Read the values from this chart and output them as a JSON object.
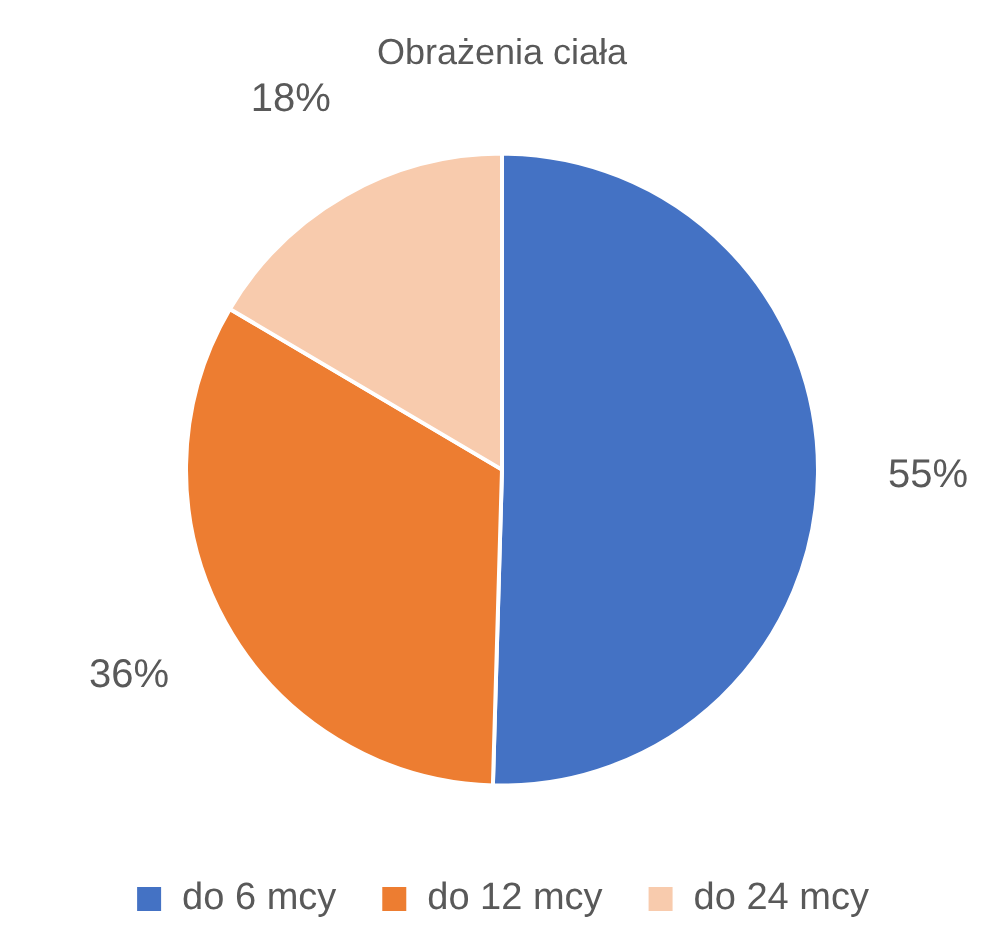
{
  "chart_data": {
    "type": "pie",
    "title": "Obrażenia ciała",
    "categories": [
      "do 6 mcy",
      "do 12 mcy",
      "do 24 mcy"
    ],
    "values": [
      55,
      36,
      18
    ],
    "value_labels": [
      "55%",
      "36%",
      "18%"
    ],
    "colors": [
      "#4472c4",
      "#ed7d31",
      "#f8cbad"
    ],
    "legend": "bottom"
  }
}
